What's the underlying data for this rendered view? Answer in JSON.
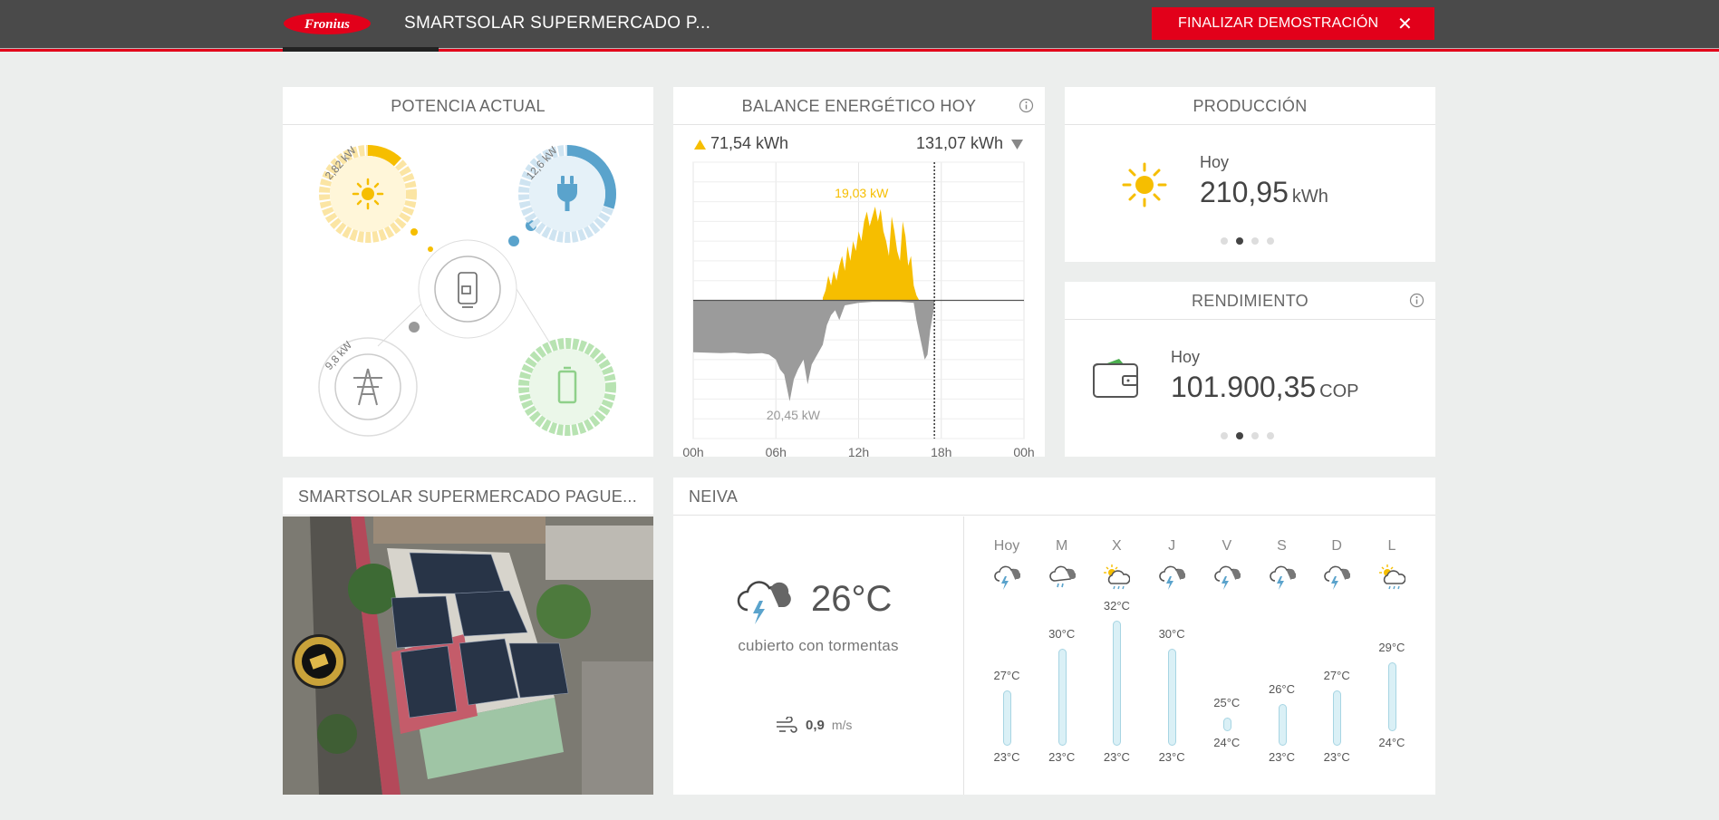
{
  "header": {
    "logo_text": "Fronius",
    "site_title": "SMARTSOLAR SUPERMERCADO P...",
    "end_demo_label": "FINALIZAR DEMOSTRACIÓN",
    "close_glyph": "✕"
  },
  "potencia": {
    "title": "POTENCIA ACTUAL",
    "solar_kw": "2,82 kW",
    "load_kw": "12,6 kW",
    "grid_kw": "9,8 kW",
    "solar_level": 0.12,
    "load_level": 0.3,
    "icons": [
      "sun-icon",
      "plug-icon",
      "inverter-icon",
      "power-tower-icon",
      "battery-icon"
    ],
    "colors": {
      "solar": "#f6be00",
      "load": "#5aa3cc",
      "grid": "#999999",
      "battery": "#8fd08a"
    }
  },
  "balance": {
    "title": "BALANCE ENERGÉTICO HOY",
    "produced": "71,54 kWh",
    "consumed": "131,07 kWh",
    "peak_label": "19,03 kW",
    "low_label": "20,45 kW"
  },
  "chart_data": {
    "type": "area",
    "x_unit": "hour",
    "xlim": [
      0,
      24
    ],
    "ylim": [
      -28,
      28
    ],
    "x_ticks": [
      "00h",
      "06h",
      "12h",
      "18h",
      "00h"
    ],
    "current_time": 17.5,
    "series": [
      {
        "role": "production",
        "color": "#f6be00",
        "x": [
          9.4,
          9.6,
          9.8,
          10.0,
          10.2,
          10.4,
          10.6,
          10.8,
          11.0,
          11.2,
          11.4,
          11.6,
          11.8,
          12.0,
          12.2,
          12.4,
          12.6,
          12.8,
          13.0,
          13.2,
          13.4,
          13.6,
          13.8,
          14.0,
          14.2,
          14.4,
          14.6,
          14.8,
          15.0,
          15.2,
          15.4,
          15.6,
          15.8,
          16.0,
          16.2,
          16.4
        ],
        "y": [
          0.5,
          2,
          5,
          3,
          6,
          4,
          7,
          9,
          6,
          11,
          8,
          12,
          10,
          14,
          12,
          16,
          18,
          15,
          17,
          19,
          16,
          18.5,
          14,
          12,
          9,
          17,
          14,
          10,
          8,
          16,
          13,
          7,
          9,
          3,
          1,
          0
        ]
      },
      {
        "role": "consumption",
        "color": "#9b9b9b",
        "x": [
          0,
          1,
          2,
          3,
          4,
          5,
          5.5,
          6,
          6.3,
          6.6,
          7,
          7.3,
          7.6,
          8,
          8.3,
          8.6,
          9,
          9.4,
          9.7,
          10.0,
          10.3,
          10.6,
          11,
          12,
          13,
          14,
          15,
          16,
          16.2,
          16.5,
          16.8,
          17,
          17.2,
          17.5
        ],
        "y": [
          -10.5,
          -10.6,
          -10.7,
          -10.6,
          -10.8,
          -10.7,
          -11,
          -12,
          -14,
          -15,
          -20.45,
          -16,
          -14,
          -12,
          -17,
          -13,
          -11,
          -9,
          -5,
          -3,
          -2,
          -4,
          -1,
          -0.5,
          -0.3,
          -0.3,
          -0.3,
          -0.5,
          -4,
          -8,
          -12,
          -11,
          -6,
          -1
        ]
      }
    ]
  },
  "produccion": {
    "title": "PRODUCCIÓN",
    "today_label": "Hoy",
    "value": "210,95",
    "unit": "kWh"
  },
  "rendimiento": {
    "title": "RENDIMIENTO",
    "today_label": "Hoy",
    "value": "101.900,35",
    "unit": "COP"
  },
  "site": {
    "title": "SMARTSOLAR SUPERMERCADO PAGUE..."
  },
  "weather": {
    "city": "NEIVA",
    "current_temp": "26°C",
    "condition": "cubierto con tormentas",
    "wind_value": "0,9",
    "wind_unit": "m/s",
    "forecast": [
      {
        "day": "Hoy",
        "max": "27°C",
        "min": "23°C",
        "max_v": 27,
        "min_v": 23,
        "icon": "thunderstorm-icon"
      },
      {
        "day": "M",
        "max": "30°C",
        "min": "23°C",
        "max_v": 30,
        "min_v": 23,
        "icon": "rain-cloud-icon"
      },
      {
        "day": "X",
        "max": "32°C",
        "min": "23°C",
        "max_v": 32,
        "min_v": 23,
        "icon": "sun-rain-icon"
      },
      {
        "day": "J",
        "max": "30°C",
        "min": "23°C",
        "max_v": 30,
        "min_v": 23,
        "icon": "thunderstorm-icon"
      },
      {
        "day": "V",
        "max": "25°C",
        "min": "24°C",
        "max_v": 25,
        "min_v": 24,
        "icon": "thunderstorm-icon"
      },
      {
        "day": "S",
        "max": "26°C",
        "min": "23°C",
        "max_v": 26,
        "min_v": 23,
        "icon": "thunderstorm-icon"
      },
      {
        "day": "D",
        "max": "27°C",
        "min": "23°C",
        "max_v": 27,
        "min_v": 23,
        "icon": "thunderstorm-icon"
      },
      {
        "day": "L",
        "max": "29°C",
        "min": "24°C",
        "max_v": 29,
        "min_v": 24,
        "icon": "sun-rain-icon"
      }
    ]
  }
}
